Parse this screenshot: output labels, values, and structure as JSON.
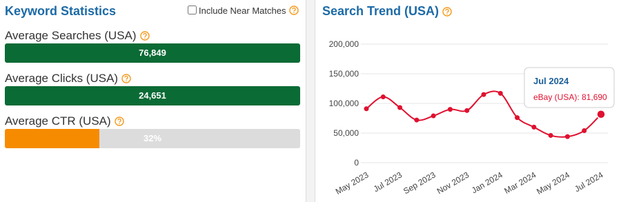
{
  "panel": {
    "title": "Keyword Statistics",
    "checkbox_label": "Include Near Matches",
    "stats": [
      {
        "label": "Average Searches (USA)",
        "value": 76849,
        "value_label": "76,849"
      },
      {
        "label": "Average Clicks (USA)",
        "value": 24651,
        "value_label": "24,651"
      },
      {
        "label": "Average CTR (USA)",
        "value": 32,
        "value_label": "32%",
        "max": 100
      }
    ]
  },
  "chart_data": {
    "type": "line",
    "title": "Search Trend (USA)",
    "categories": [
      "May 2023",
      null,
      "Jul 2023",
      null,
      "Sep 2023",
      null,
      "Nov 2023",
      null,
      "Jan 2024",
      null,
      "Mar 2024",
      null,
      "May 2024",
      null,
      "Jul 2024"
    ],
    "series": [
      {
        "name": "eBay (USA)",
        "color": "#e0102f",
        "values": [
          91000,
          111000,
          93000,
          72000,
          79000,
          90000,
          88000,
          115000,
          117000,
          76000,
          60000,
          46000,
          44000,
          54000,
          81690
        ]
      }
    ],
    "ylim": [
      0,
      200000
    ],
    "yticks": [
      0,
      {
        "value": 50000,
        "label": "50,000"
      },
      {
        "value": 100000,
        "label": "100,000"
      },
      {
        "value": 150000,
        "label": "150,000"
      },
      {
        "value": 200000,
        "label": "200,000"
      }
    ],
    "grid": true,
    "tooltip": {
      "title": "Jul 2024",
      "label": "eBay (USA): 81,690"
    }
  }
}
